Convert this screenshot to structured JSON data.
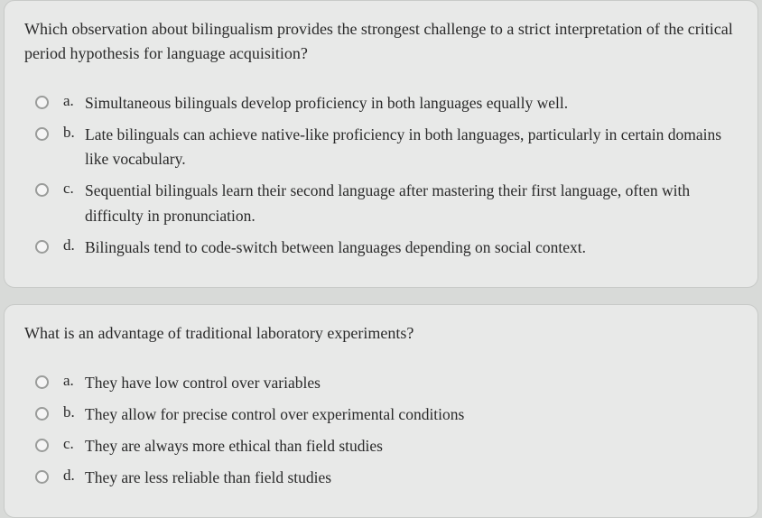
{
  "questions": [
    {
      "prompt": "Which observation about bilingualism provides the strongest challenge to a strict interpretation of the critical period hypothesis for language acquisition?",
      "options": [
        {
          "letter": "a.",
          "text": "Simultaneous bilinguals develop proficiency in both languages equally well."
        },
        {
          "letter": "b.",
          "text": "Late bilinguals can achieve native-like proficiency in both languages, particularly in certain domains like vocabulary."
        },
        {
          "letter": "c.",
          "text": "Sequential bilinguals learn their second language after mastering their first language, often with difficulty in pronunciation."
        },
        {
          "letter": "d.",
          "text": "Bilinguals tend to code-switch between languages depending on social context."
        }
      ]
    },
    {
      "prompt": "What is an advantage of traditional laboratory experiments?",
      "options": [
        {
          "letter": "a.",
          "text": "They have low control over variables"
        },
        {
          "letter": "b.",
          "text": "They allow for precise control over experimental conditions"
        },
        {
          "letter": "c.",
          "text": "They are always more ethical than field studies"
        },
        {
          "letter": "d.",
          "text": "They are less reliable than field studies"
        }
      ]
    }
  ],
  "style": {
    "background_color": "#d8dad8",
    "card_background": "#e8e9e8",
    "card_border_radius": 12,
    "card_border_color": "#c8cac8",
    "text_color": "#2a2a2a",
    "question_fontsize": 18,
    "option_fontsize": 17.5,
    "radio_border_color": "#9a9c9a",
    "radio_fill_color": "#f5f5f5",
    "radio_size": 15,
    "font_family": "Georgia, serif"
  }
}
